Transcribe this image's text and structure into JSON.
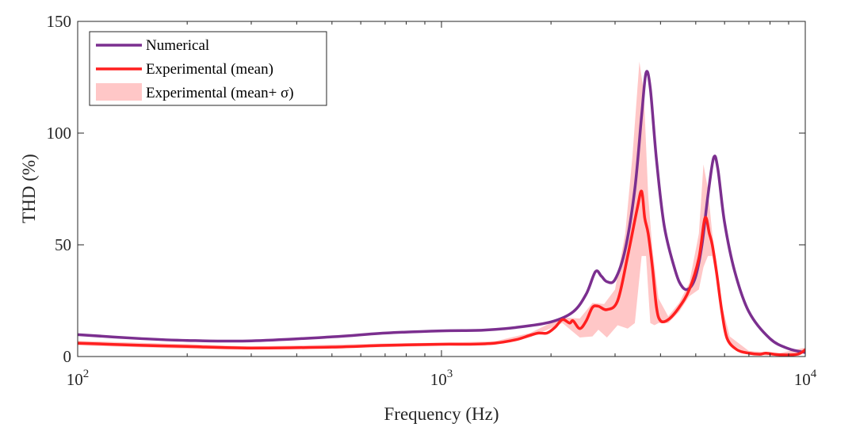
{
  "chart_data": {
    "type": "line",
    "xscale": "log",
    "xlim": [
      100,
      10000
    ],
    "ylim": [
      0,
      150
    ],
    "xlabel": "Frequency (Hz)",
    "ylabel": "THD (%)",
    "x_ticks": [
      {
        "value": 100,
        "base": "10",
        "exp": "2"
      },
      {
        "value": 1000,
        "base": "10",
        "exp": "3"
      },
      {
        "value": 10000,
        "base": "10",
        "exp": "4"
      }
    ],
    "y_ticks": [
      {
        "value": 0,
        "label": "0"
      },
      {
        "value": 50,
        "label": "50"
      },
      {
        "value": 100,
        "label": "100"
      },
      {
        "value": 150,
        "label": "150"
      }
    ],
    "grid": false,
    "legend_position": "top-left",
    "colors": {
      "numerical": "#7b2f8f",
      "experimental": "#ff1f1f",
      "band": "#ffc7c7"
    },
    "series": [
      {
        "name": "Numerical",
        "kind": "line",
        "points": [
          [
            100,
            9.8
          ],
          [
            150,
            8.0
          ],
          [
            200,
            7.2
          ],
          [
            300,
            7.0
          ],
          [
            500,
            8.8
          ],
          [
            700,
            10.5
          ],
          [
            1000,
            11.5
          ],
          [
            1300,
            11.8
          ],
          [
            1600,
            13.0
          ],
          [
            2000,
            15.5
          ],
          [
            2300,
            20.0
          ],
          [
            2500,
            28.0
          ],
          [
            2650,
            38.0
          ],
          [
            2750,
            36.0
          ],
          [
            2850,
            33.5
          ],
          [
            3000,
            34.5
          ],
          [
            3200,
            48.0
          ],
          [
            3400,
            75.0
          ],
          [
            3550,
            108.0
          ],
          [
            3650,
            127.0
          ],
          [
            3750,
            120.0
          ],
          [
            3900,
            88.0
          ],
          [
            4100,
            58.0
          ],
          [
            4400,
            38.0
          ],
          [
            4600,
            31.0
          ],
          [
            4800,
            30.5
          ],
          [
            5000,
            36.0
          ],
          [
            5200,
            50.0
          ],
          [
            5400,
            72.0
          ],
          [
            5600,
            89.0
          ],
          [
            5750,
            84.0
          ],
          [
            6000,
            60.0
          ],
          [
            6400,
            38.0
          ],
          [
            7000,
            20.0
          ],
          [
            8000,
            8.0
          ],
          [
            9000,
            3.5
          ],
          [
            10000,
            1.8
          ]
        ]
      },
      {
        "name": "Experimental (mean)",
        "kind": "line",
        "points": [
          [
            100,
            6.0
          ],
          [
            150,
            5.0
          ],
          [
            200,
            4.5
          ],
          [
            300,
            3.8
          ],
          [
            500,
            4.2
          ],
          [
            700,
            5.0
          ],
          [
            1000,
            5.5
          ],
          [
            1200,
            5.5
          ],
          [
            1400,
            6.0
          ],
          [
            1600,
            7.5
          ],
          [
            1750,
            9.5
          ],
          [
            1850,
            10.5
          ],
          [
            1950,
            10.5
          ],
          [
            2050,
            13.0
          ],
          [
            2150,
            16.5
          ],
          [
            2250,
            15.0
          ],
          [
            2300,
            16.0
          ],
          [
            2400,
            12.5
          ],
          [
            2500,
            16.0
          ],
          [
            2600,
            22.0
          ],
          [
            2700,
            22.5
          ],
          [
            2850,
            21.0
          ],
          [
            3050,
            25.0
          ],
          [
            3250,
            45.0
          ],
          [
            3450,
            66.0
          ],
          [
            3550,
            74.0
          ],
          [
            3620,
            62.0
          ],
          [
            3700,
            55.0
          ],
          [
            3800,
            40.0
          ],
          [
            3900,
            22.0
          ],
          [
            4000,
            16.0
          ],
          [
            4200,
            16.5
          ],
          [
            4500,
            22.0
          ],
          [
            4800,
            30.0
          ],
          [
            5100,
            44.0
          ],
          [
            5300,
            62.0
          ],
          [
            5450,
            55.0
          ],
          [
            5550,
            50.0
          ],
          [
            5700,
            38.0
          ],
          [
            5900,
            20.0
          ],
          [
            6100,
            8.0
          ],
          [
            6500,
            3.0
          ],
          [
            7000,
            1.5
          ],
          [
            7500,
            1.0
          ],
          [
            7800,
            1.5
          ],
          [
            8500,
            0.8
          ],
          [
            9500,
            1.0
          ],
          [
            10000,
            3.0
          ]
        ]
      },
      {
        "name": "Experimental (mean+ σ)",
        "kind": "band",
        "upper": [
          [
            100,
            7.0
          ],
          [
            200,
            5.5
          ],
          [
            300,
            4.5
          ],
          [
            700,
            5.8
          ],
          [
            1000,
            6.2
          ],
          [
            1400,
            6.8
          ],
          [
            1750,
            10.5
          ],
          [
            2150,
            17.5
          ],
          [
            2400,
            17.0
          ],
          [
            2600,
            24.0
          ],
          [
            2800,
            23.5
          ],
          [
            3000,
            30.0
          ],
          [
            3200,
            55.0
          ],
          [
            3350,
            90.0
          ],
          [
            3500,
            132.0
          ],
          [
            3600,
            118.0
          ],
          [
            3700,
            72.0
          ],
          [
            3800,
            48.0
          ],
          [
            3950,
            26.0
          ],
          [
            4200,
            18.0
          ],
          [
            4500,
            24.0
          ],
          [
            4800,
            33.0
          ],
          [
            5100,
            55.0
          ],
          [
            5250,
            86.0
          ],
          [
            5400,
            75.0
          ],
          [
            5550,
            55.0
          ],
          [
            5700,
            42.0
          ],
          [
            5900,
            23.0
          ],
          [
            6200,
            9.0
          ],
          [
            7000,
            2.5
          ],
          [
            8500,
            1.5
          ],
          [
            10000,
            4.0
          ]
        ],
        "lower": [
          [
            100,
            5.0
          ],
          [
            200,
            3.5
          ],
          [
            300,
            3.0
          ],
          [
            700,
            4.2
          ],
          [
            1000,
            4.8
          ],
          [
            1400,
            5.2
          ],
          [
            1750,
            8.5
          ],
          [
            2150,
            15.0
          ],
          [
            2400,
            8.5
          ],
          [
            2600,
            9.0
          ],
          [
            2700,
            12.0
          ],
          [
            2850,
            8.5
          ],
          [
            3050,
            14.0
          ],
          [
            3250,
            12.5
          ],
          [
            3400,
            15.0
          ],
          [
            3550,
            45.0
          ],
          [
            3650,
            45.0
          ],
          [
            3750,
            15.0
          ],
          [
            3850,
            14.0
          ],
          [
            3950,
            15.0
          ],
          [
            4200,
            15.0
          ],
          [
            4500,
            20.0
          ],
          [
            4800,
            27.0
          ],
          [
            5100,
            30.0
          ],
          [
            5250,
            40.0
          ],
          [
            5400,
            45.0
          ],
          [
            5550,
            45.0
          ],
          [
            5700,
            34.0
          ],
          [
            5900,
            17.0
          ],
          [
            6200,
            6.0
          ],
          [
            7000,
            0.8
          ],
          [
            8500,
            0.3
          ],
          [
            10000,
            2.0
          ]
        ]
      }
    ]
  }
}
